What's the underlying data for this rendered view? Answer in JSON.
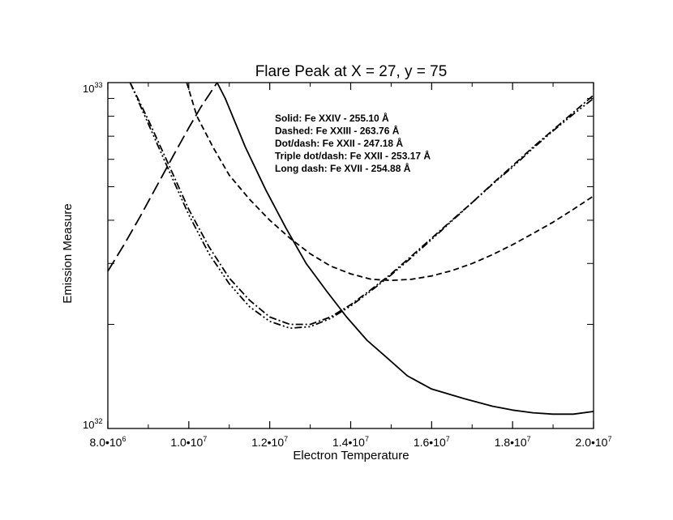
{
  "chart_data": {
    "type": "line",
    "title": "Flare Peak at X = 27, y = 75",
    "xlabel": "Electron Temperature",
    "ylabel": "Emission Measure",
    "xlim": [
      8000000,
      20000000
    ],
    "ylim": [
      1e+32,
      1e+33
    ],
    "yscale": "log",
    "grid": false,
    "x_ticks": [
      {
        "value": 8000000,
        "mantissa": "8.0•10",
        "exp": "6"
      },
      {
        "value": 10000000,
        "mantissa": "1.0•10",
        "exp": "7"
      },
      {
        "value": 12000000,
        "mantissa": "1.2•10",
        "exp": "7"
      },
      {
        "value": 14000000,
        "mantissa": "1.4•10",
        "exp": "7"
      },
      {
        "value": 16000000,
        "mantissa": "1.6•10",
        "exp": "7"
      },
      {
        "value": 18000000,
        "mantissa": "1.8•10",
        "exp": "7"
      },
      {
        "value": 20000000,
        "mantissa": "2.0•10",
        "exp": "7"
      }
    ],
    "y_ticks": [
      {
        "value": 1e+32,
        "mantissa": "10",
        "exp": "32"
      },
      {
        "value": 1e+33,
        "mantissa": "10",
        "exp": "33"
      }
    ],
    "legend_lines": [
      "Solid: Fe XXIV - 255.10 Å",
      "Dashed: Fe XXIII - 263.76 Å",
      "Dot/dash: Fe XXII - 247.18 Å",
      "Triple dot/dash: Fe XXII - 253.17 Å",
      "Long dash: Fe XVII - 254.88 Å"
    ],
    "legend_position": "top-center",
    "series": [
      {
        "dash": "solid",
        "x": [
          10700000,
          10900000,
          11400000,
          11900000,
          12400000,
          12900000,
          13400000,
          13900000,
          14400000,
          14900000,
          15400000,
          16000000,
          16800000,
          17500000,
          18000000,
          18500000,
          19000000,
          19500000,
          20000000
        ],
        "y": [
          1e+33,
          9e+32,
          6.5e+32,
          4.9e+32,
          3.8e+32,
          3e+32,
          2.5e+32,
          2.1e+32,
          1.8e+32,
          1.6e+32,
          1.42e+32,
          1.3e+32,
          1.22e+32,
          1.16e+32,
          1.13e+32,
          1.11e+32,
          1.1e+32,
          1.1e+32,
          1.12e+32
        ]
      },
      {
        "dash": "dashed",
        "x": [
          9950000,
          10200000,
          10600000,
          11000000,
          11500000,
          12000000,
          12500000,
          13000000,
          13500000,
          14000000,
          14500000,
          15000000,
          15500000,
          16000000,
          16500000,
          17000000,
          17500000,
          18000000,
          18500000,
          19000000,
          19500000,
          20000000
        ],
        "y": [
          1e+33,
          8e+32,
          6.5e+32,
          5.4e+32,
          4.6e+32,
          4e+32,
          3.55e+32,
          3.2e+32,
          2.95e+32,
          2.8e+32,
          2.7e+32,
          2.68e+32,
          2.7e+32,
          2.76e+32,
          2.86e+32,
          3e+32,
          3.18e+32,
          3.4e+32,
          3.66e+32,
          3.95e+32,
          4.3e+32,
          4.7e+32
        ]
      },
      {
        "dash": "dot-dash",
        "x": [
          8550000,
          9000000,
          9500000,
          10000000,
          10500000,
          11000000,
          11500000,
          12000000,
          12500000,
          13000000,
          13500000,
          14000000,
          14500000,
          15000000,
          15500000,
          16000000,
          16500000,
          17000000,
          17500000,
          18000000,
          18500000,
          19000000,
          19500000,
          20000000
        ],
        "y": [
          1e+33,
          7.8e+32,
          5.8e+32,
          4.3e+32,
          3.35e+32,
          2.72e+32,
          2.35e+32,
          2.1e+32,
          2e+32,
          2e+32,
          2.1e+32,
          2.28e+32,
          2.52e+32,
          2.8e+32,
          3.15e+32,
          3.55e+32,
          4e+32,
          4.5e+32,
          5.1e+32,
          5.75e+32,
          6.5e+32,
          7.3e+32,
          8.2e+32,
          9.2e+32
        ]
      },
      {
        "dash": "triple-dot-dash",
        "x": [
          8550000,
          9000000,
          9500000,
          10000000,
          10500000,
          11000000,
          11500000,
          12000000,
          12500000,
          13000000,
          13500000,
          14000000,
          14500000,
          15000000,
          15500000,
          16000000,
          16500000,
          17000000,
          17500000,
          18000000,
          18500000,
          19000000,
          19500000,
          20000000
        ],
        "y": [
          1e+33,
          7.6e+32,
          5.6e+32,
          4.15e+32,
          3.2e+32,
          2.62e+32,
          2.25e+32,
          2.04e+32,
          1.95e+32,
          1.97e+32,
          2.08e+32,
          2.26e+32,
          2.5e+32,
          2.78e+32,
          3.12e+32,
          3.52e+32,
          3.98e+32,
          4.5e+32,
          5.08e+32,
          5.7e+32,
          6.45e+32,
          7.25e+32,
          8.1e+32,
          9e+32
        ]
      },
      {
        "dash": "long-dash",
        "x": [
          8000000,
          8400000,
          8800000,
          9200000,
          9600000,
          10000000,
          10300000,
          10700000
        ],
        "y": [
          2.85e+32,
          3.4e+32,
          4.1e+32,
          5e+32,
          6.1e+32,
          7.4e+32,
          8.5e+32,
          1e+33
        ]
      }
    ]
  }
}
